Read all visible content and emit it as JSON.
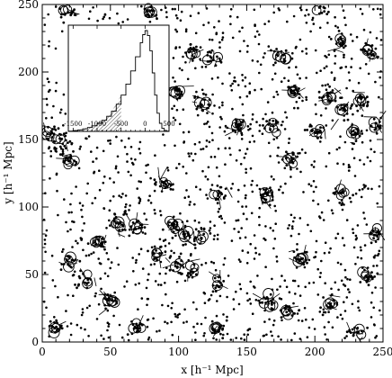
{
  "chart_data": [
    {
      "type": "scatter",
      "title": "",
      "xlabel": "x [h⁻¹ Mpc]",
      "ylabel": "y [h⁻¹ Mpc]",
      "xlim": [
        0,
        250
      ],
      "ylim": [
        0,
        250
      ],
      "xticks": [
        "0",
        "50",
        "100",
        "150",
        "200",
        "250"
      ],
      "yticks": [
        "0",
        "50",
        "100",
        "150",
        "200",
        "250"
      ],
      "grid": false,
      "marker_styles": [
        "dot",
        "open-circle",
        "short-line-segment"
      ],
      "colors": {
        "ink": "#000000",
        "background": "#ffffff"
      },
      "clusters": [
        {
          "x": 18,
          "y": 245
        },
        {
          "x": 80,
          "y": 245
        },
        {
          "x": 205,
          "y": 247
        },
        {
          "x": 110,
          "y": 215
        },
        {
          "x": 125,
          "y": 210
        },
        {
          "x": 175,
          "y": 212
        },
        {
          "x": 220,
          "y": 220
        },
        {
          "x": 240,
          "y": 215
        },
        {
          "x": 100,
          "y": 185
        },
        {
          "x": 118,
          "y": 178
        },
        {
          "x": 185,
          "y": 185
        },
        {
          "x": 210,
          "y": 183
        },
        {
          "x": 222,
          "y": 172
        },
        {
          "x": 235,
          "y": 178
        },
        {
          "x": 5,
          "y": 155
        },
        {
          "x": 15,
          "y": 150
        },
        {
          "x": 145,
          "y": 160
        },
        {
          "x": 170,
          "y": 160
        },
        {
          "x": 200,
          "y": 155
        },
        {
          "x": 230,
          "y": 155
        },
        {
          "x": 245,
          "y": 160
        },
        {
          "x": 20,
          "y": 135
        },
        {
          "x": 180,
          "y": 135
        },
        {
          "x": 90,
          "y": 118
        },
        {
          "x": 130,
          "y": 108
        },
        {
          "x": 165,
          "y": 108
        },
        {
          "x": 220,
          "y": 110
        },
        {
          "x": 55,
          "y": 88
        },
        {
          "x": 70,
          "y": 85
        },
        {
          "x": 95,
          "y": 85
        },
        {
          "x": 105,
          "y": 80
        },
        {
          "x": 115,
          "y": 78
        },
        {
          "x": 245,
          "y": 80
        },
        {
          "x": 40,
          "y": 75
        },
        {
          "x": 85,
          "y": 65
        },
        {
          "x": 100,
          "y": 60
        },
        {
          "x": 190,
          "y": 62
        },
        {
          "x": 20,
          "y": 58
        },
        {
          "x": 30,
          "y": 47
        },
        {
          "x": 110,
          "y": 52
        },
        {
          "x": 130,
          "y": 45
        },
        {
          "x": 240,
          "y": 48
        },
        {
          "x": 50,
          "y": 30
        },
        {
          "x": 165,
          "y": 30
        },
        {
          "x": 180,
          "y": 22
        },
        {
          "x": 210,
          "y": 28
        },
        {
          "x": 10,
          "y": 10
        },
        {
          "x": 70,
          "y": 12
        },
        {
          "x": 130,
          "y": 10
        },
        {
          "x": 230,
          "y": 8
        }
      ]
    },
    {
      "type": "area",
      "title": "",
      "xlabel": "",
      "ylabel": "",
      "xlim": [
        -1600,
        500
      ],
      "xticks": [
        "-1500",
        "-1000",
        "-500",
        "0",
        "500"
      ],
      "fill_below_x": -500,
      "fill_pattern": "diagonal-hatch",
      "x": [
        -1600,
        -1500,
        -1400,
        -1300,
        -1200,
        -1100,
        -1000,
        -900,
        -800,
        -700,
        -600,
        -500,
        -400,
        -300,
        -200,
        -100,
        -50,
        0,
        50,
        100,
        150,
        200,
        250,
        300,
        350,
        400,
        450,
        500
      ],
      "y": [
        0.3,
        0.8,
        1.5,
        2.5,
        3.8,
        5.5,
        8,
        11,
        15,
        20,
        27,
        36,
        47,
        60,
        74,
        88,
        96,
        100,
        95,
        80,
        58,
        36,
        18,
        8,
        3,
        1,
        0.3,
        0
      ]
    }
  ]
}
